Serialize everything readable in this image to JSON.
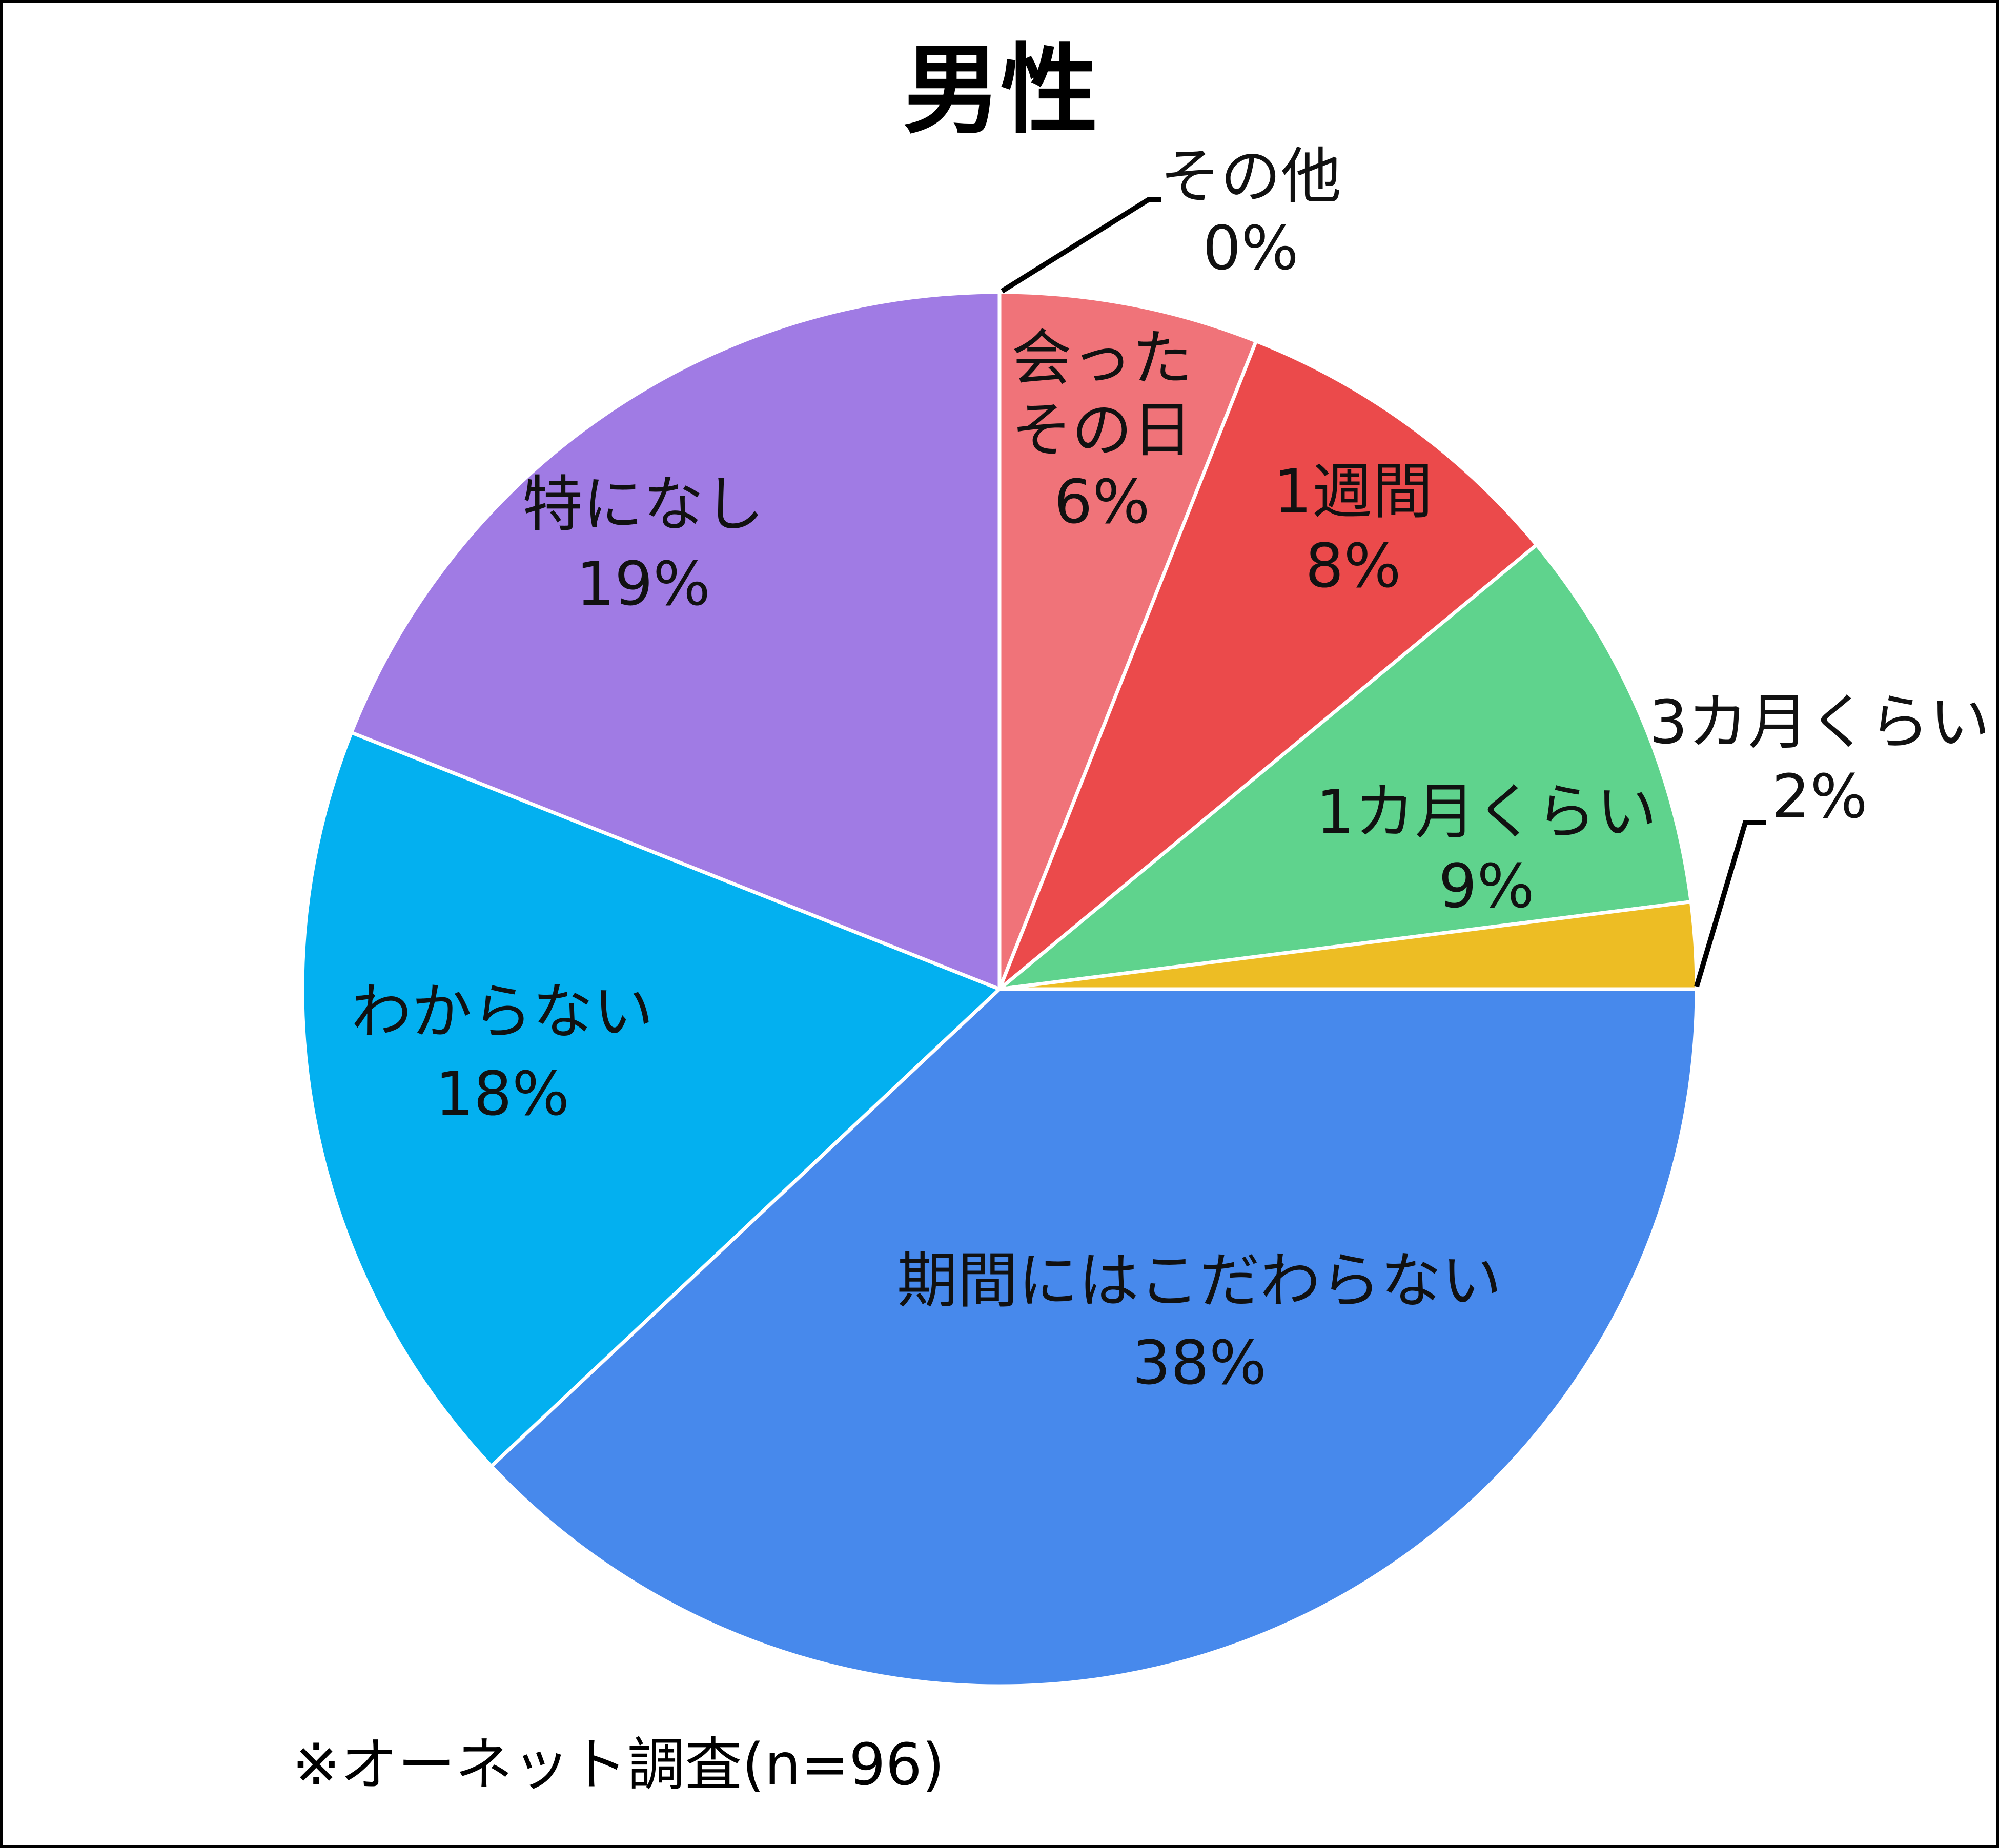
{
  "chart_data": {
    "type": "pie",
    "title": "男性",
    "start_angle_deg": 0,
    "direction": "clockwise",
    "slices": [
      {
        "label": [
          "会った",
          "その日"
        ],
        "value": 6,
        "percent_label": "6%",
        "color": "#F07379"
      },
      {
        "label": [
          "1週間"
        ],
        "value": 8,
        "percent_label": "8%",
        "color": "#EB4A4B"
      },
      {
        "label": [
          "1カ月くらい"
        ],
        "value": 9,
        "percent_label": "9%",
        "color": "#5FD38D"
      },
      {
        "label": [
          "3カ月くらい"
        ],
        "value": 2,
        "percent_label": "2%",
        "color": "#EDBD24"
      },
      {
        "label": [
          "期間にはこだわらない"
        ],
        "value": 38,
        "percent_label": "38%",
        "color": "#4789EC"
      },
      {
        "label": [
          "わからない"
        ],
        "value": 18,
        "percent_label": "18%",
        "color": "#03B0F0"
      },
      {
        "label": [
          "特になし"
        ],
        "value": 19,
        "percent_label": "19%",
        "color": "#A07BE4"
      },
      {
        "label": [
          "その他"
        ],
        "value": 0,
        "percent_label": "0%",
        "color": "#C0C0C0"
      }
    ],
    "legend": "none",
    "footnote": "※オーネット調査(n=96)"
  }
}
